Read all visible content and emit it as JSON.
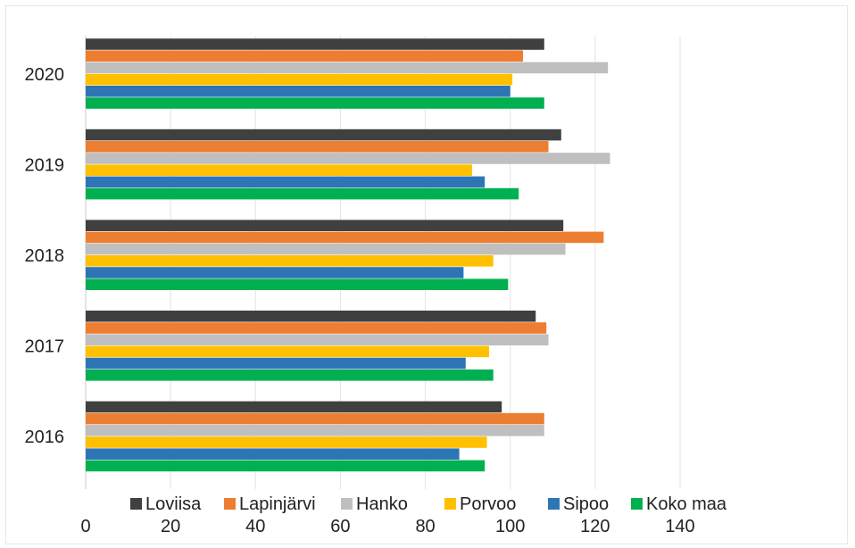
{
  "chart_data": {
    "type": "bar",
    "orientation": "horizontal",
    "categories": [
      "2016",
      "2017",
      "2018",
      "2019",
      "2020"
    ],
    "series": [
      {
        "name": "Loviisa",
        "color": "#404040",
        "values": [
          98,
          106,
          112.5,
          112,
          108
        ]
      },
      {
        "name": "Lapinjärvi",
        "color": "#ed7d31",
        "values": [
          108,
          108.5,
          122,
          109,
          103
        ]
      },
      {
        "name": "Hanko",
        "color": "#bfbfbf",
        "values": [
          108,
          109,
          113,
          123.5,
          123
        ]
      },
      {
        "name": "Porvoo",
        "color": "#ffc000",
        "values": [
          94.5,
          95,
          96,
          91,
          100.5
        ]
      },
      {
        "name": "Sipoo",
        "color": "#2e75b6",
        "values": [
          88,
          89.5,
          89,
          94,
          100
        ]
      },
      {
        "name": "Koko maa",
        "color": "#00b050",
        "values": [
          94,
          96,
          99.5,
          102,
          108
        ]
      }
    ],
    "xlim": [
      0,
      140
    ],
    "xticks": [
      "0",
      "20",
      "40",
      "60",
      "80",
      "100",
      "120",
      "140"
    ],
    "grid": true,
    "legend_position": "bottom",
    "title": "",
    "xlabel": "",
    "ylabel": ""
  }
}
